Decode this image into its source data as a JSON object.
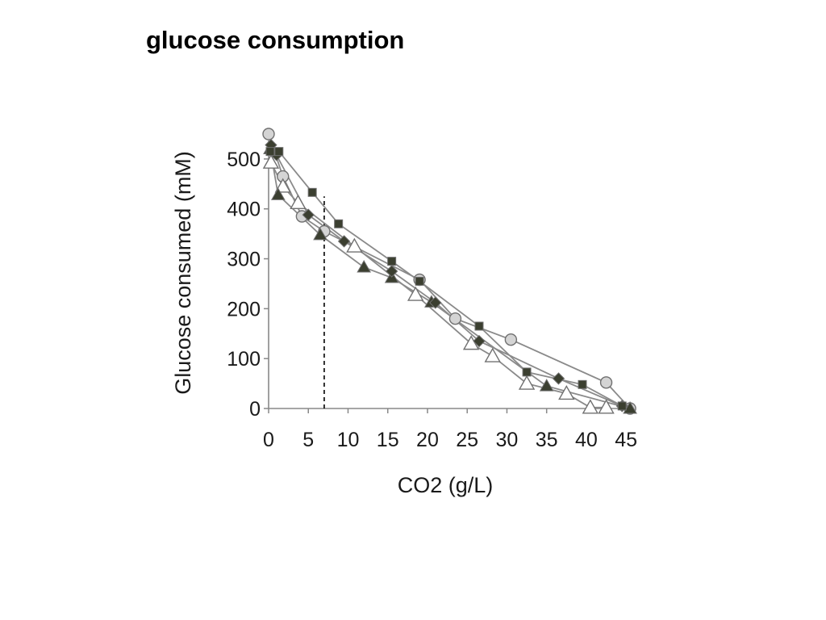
{
  "slide": {
    "title": "glucose consumption"
  },
  "chart_data": {
    "type": "line",
    "title": "",
    "xlabel": "CO2 (g/L)",
    "ylabel": "Glucose consumed (mM)",
    "xlim": [
      0,
      46
    ],
    "ylim": [
      0,
      550
    ],
    "x_ticks": [
      0,
      5,
      10,
      15,
      20,
      25,
      30,
      35,
      40,
      45
    ],
    "y_ticks": [
      0,
      100,
      200,
      300,
      400,
      500
    ],
    "reference_line": {
      "style": "dashed",
      "x": 7,
      "y_top": 425
    },
    "colors": {
      "line": "#8a8a8a",
      "dark_fill": "#3b3f30",
      "light_fill": "#d4d4d4",
      "open_fill": "#ffffff",
      "marker_stroke": "#707070",
      "axis": "#888888",
      "reference": "#000000"
    },
    "series": [
      {
        "name": "filled squares",
        "marker": "square",
        "x": [
          0.2,
          1.3,
          5.5,
          8.8,
          15.5,
          19,
          26.5,
          32.5,
          39.5,
          44.5
        ],
        "y": [
          515,
          515,
          433,
          370,
          295,
          255,
          165,
          73,
          48,
          5
        ]
      },
      {
        "name": "filled diamonds",
        "marker": "diamond",
        "x": [
          0.3,
          1,
          5,
          9.5,
          15.5,
          21,
          26.5,
          36.5,
          44.5
        ],
        "y": [
          528,
          508,
          388,
          335,
          275,
          212,
          135,
          60,
          5
        ]
      },
      {
        "name": "open circles",
        "marker": "circle",
        "x": [
          0,
          1.8,
          4.2,
          7,
          19,
          23.5,
          30.5,
          42.5,
          45.5
        ],
        "y": [
          550,
          465,
          385,
          355,
          258,
          180,
          138,
          52,
          0
        ]
      },
      {
        "name": "filled triangles",
        "marker": "triangle",
        "x": [
          0.2,
          1.2,
          6.5,
          12,
          15.5,
          20.5,
          35,
          45.5
        ],
        "y": [
          520,
          428,
          348,
          283,
          262,
          213,
          45,
          0
        ]
      },
      {
        "name": "open triangles",
        "marker": "triangle-open",
        "x": [
          0.3,
          1.8,
          3.7,
          10.8,
          18.5,
          25.5,
          28.2,
          32.5,
          37.5,
          40.5,
          42.5
        ],
        "y": [
          493,
          445,
          412,
          325,
          228,
          130,
          105,
          50,
          30,
          2,
          2
        ]
      }
    ]
  }
}
